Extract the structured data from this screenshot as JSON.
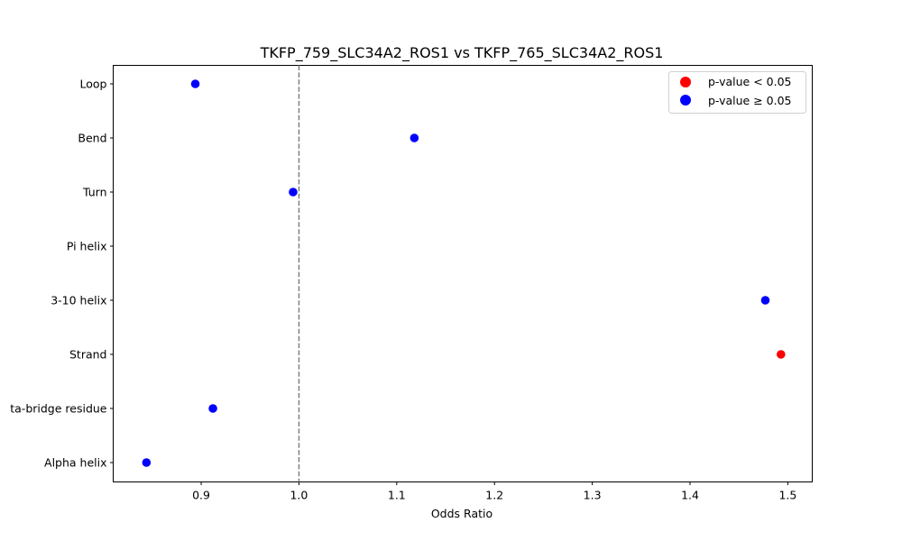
{
  "chart_data": {
    "type": "scatter",
    "title": "TKFP_759_SLC34A2_ROS1 vs TKFP_765_SLC34A2_ROS1",
    "xlabel": "Odds Ratio",
    "ylabel": "",
    "xlim": [
      0.81,
      1.525
    ],
    "xticks": [
      0.9,
      1.0,
      1.1,
      1.2,
      1.3,
      1.4,
      1.5
    ],
    "xtick_labels": [
      "0.9",
      "1.0",
      "1.1",
      "1.2",
      "1.3",
      "1.4",
      "1.5"
    ],
    "categories": [
      "Loop",
      "Bend",
      "Turn",
      "Pi helix",
      "3-10 helix",
      "Strand",
      "Beta-bridge residue",
      "Alpha helix"
    ],
    "ytick_labels_visible": [
      "Loop",
      "Bend",
      "Turn",
      "Pi helix",
      "3-10 helix",
      "Strand",
      "ta-bridge residue",
      "Alpha helix"
    ],
    "points": [
      {
        "category": "Loop",
        "odds_ratio": 0.894,
        "significant": false
      },
      {
        "category": "Bend",
        "odds_ratio": 1.118,
        "significant": false
      },
      {
        "category": "Turn",
        "odds_ratio": 0.994,
        "significant": false
      },
      {
        "category": "Pi helix",
        "odds_ratio": null,
        "significant": null
      },
      {
        "category": "3-10 helix",
        "odds_ratio": 1.477,
        "significant": false
      },
      {
        "category": "Strand",
        "odds_ratio": 1.493,
        "significant": true
      },
      {
        "category": "Beta-bridge residue",
        "odds_ratio": 0.912,
        "significant": false
      },
      {
        "category": "Alpha helix",
        "odds_ratio": 0.844,
        "significant": false
      }
    ],
    "reference_line": {
      "x": 1.0,
      "style": "dashed",
      "color": "#808080"
    },
    "legend": {
      "position": "upper right",
      "entries": [
        {
          "label": "p-value < 0.05",
          "color": "#ff0000"
        },
        {
          "label": "p-value ≥ 0.05",
          "color": "#0000ff"
        }
      ]
    },
    "grid": false,
    "colors": {
      "significant": "#ff0000",
      "not_significant": "#0000ff"
    }
  }
}
